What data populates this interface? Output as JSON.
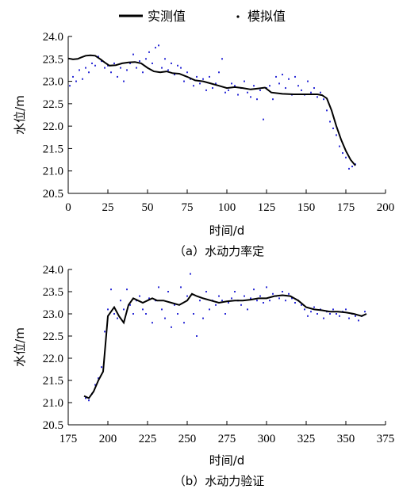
{
  "legend": {
    "measured_label": "实测值",
    "simulated_label": "模拟值"
  },
  "colors": {
    "measured_line": "#000000",
    "simulated_points": "#2b2bd6"
  },
  "chart_data": [
    {
      "type": "scatter",
      "caption": "（a）水动力率定",
      "xlabel": "时间/d",
      "ylabel": "水位/m",
      "xlim": [
        0,
        200
      ],
      "ylim": [
        20.5,
        24.0
      ],
      "xticks": [
        0,
        25,
        50,
        75,
        100,
        125,
        150,
        175,
        200
      ],
      "yticks": [
        "20.5",
        "21.0",
        "21.5",
        "22.0",
        "22.5",
        "23.0",
        "23.5",
        "24.0"
      ],
      "series": [
        {
          "name": "实测值",
          "style": "line",
          "x": [
            0,
            3,
            6,
            8,
            11,
            14,
            17,
            20,
            23,
            26,
            30,
            34,
            38,
            42,
            46,
            50,
            54,
            58,
            62,
            66,
            70,
            75,
            80,
            85,
            90,
            95,
            100,
            105,
            110,
            115,
            120,
            124,
            128,
            135,
            142,
            150,
            157,
            160,
            163,
            166,
            169,
            172,
            175,
            178,
            181
          ],
          "y": [
            23.51,
            23.49,
            23.5,
            23.53,
            23.57,
            23.58,
            23.57,
            23.5,
            23.42,
            23.35,
            23.36,
            23.4,
            23.42,
            23.43,
            23.4,
            23.3,
            23.22,
            23.2,
            23.22,
            23.18,
            23.17,
            23.1,
            23.02,
            23.0,
            22.95,
            22.9,
            22.85,
            22.87,
            22.85,
            22.82,
            22.84,
            22.86,
            22.75,
            22.72,
            22.71,
            22.71,
            22.71,
            22.69,
            22.62,
            22.35,
            22.0,
            21.7,
            21.45,
            21.25,
            21.12
          ]
        },
        {
          "name": "模拟值",
          "style": "points",
          "x": [
            1,
            3,
            5,
            7,
            9,
            11,
            13,
            15,
            17,
            19,
            21,
            23,
            25,
            27,
            29,
            31,
            33,
            35,
            37,
            39,
            41,
            43,
            45,
            47,
            49,
            51,
            53,
            55,
            57,
            59,
            61,
            63,
            65,
            67,
            69,
            71,
            73,
            75,
            77,
            79,
            81,
            83,
            85,
            87,
            89,
            91,
            93,
            95,
            97,
            99,
            101,
            103,
            105,
            107,
            109,
            111,
            113,
            115,
            117,
            119,
            121,
            123,
            125,
            127,
            129,
            131,
            133,
            135,
            137,
            139,
            141,
            143,
            145,
            147,
            149,
            151,
            153,
            155,
            157,
            159,
            161,
            163,
            165,
            167,
            169,
            171,
            173,
            175,
            177,
            179,
            181
          ],
          "y": [
            22.9,
            23.1,
            23.0,
            23.25,
            23.05,
            23.3,
            23.2,
            23.4,
            23.35,
            23.55,
            23.45,
            23.3,
            23.35,
            23.2,
            23.4,
            23.1,
            23.3,
            23.0,
            23.25,
            23.4,
            23.6,
            23.3,
            23.45,
            23.2,
            23.5,
            23.65,
            23.4,
            23.75,
            23.8,
            23.3,
            23.5,
            23.25,
            23.4,
            23.15,
            23.35,
            23.3,
            23.0,
            23.2,
            23.05,
            22.9,
            23.1,
            22.95,
            23.05,
            22.8,
            23.1,
            22.85,
            22.95,
            23.2,
            23.5,
            22.75,
            22.8,
            22.95,
            22.9,
            22.7,
            22.85,
            23.0,
            22.75,
            22.65,
            22.9,
            22.6,
            22.8,
            22.15,
            22.85,
            22.9,
            22.6,
            23.1,
            22.95,
            23.15,
            22.85,
            23.05,
            22.7,
            23.1,
            22.9,
            22.8,
            22.7,
            23.0,
            22.75,
            22.85,
            22.65,
            22.75,
            22.6,
            22.35,
            22.1,
            21.95,
            21.8,
            21.55,
            21.4,
            21.3,
            21.05,
            21.1,
            21.15
          ]
        }
      ]
    },
    {
      "type": "scatter",
      "caption": "（b）水动力验证",
      "xlabel": "时间/d",
      "ylabel": "水位/m",
      "xlim": [
        175,
        375
      ],
      "ylim": [
        20.5,
        24.0
      ],
      "xticks": [
        175,
        200,
        225,
        250,
        275,
        300,
        325,
        350,
        375
      ],
      "yticks": [
        "20.5",
        "21.0",
        "21.5",
        "22.0",
        "22.5",
        "23.0",
        "23.5",
        "24.0"
      ],
      "series": [
        {
          "name": "实测值",
          "style": "line",
          "x": [
            185,
            188,
            191,
            194,
            197,
            200,
            204,
            207,
            210,
            213,
            216,
            219,
            222,
            225,
            228,
            231,
            235,
            240,
            245,
            250,
            253,
            256,
            260,
            265,
            270,
            275,
            280,
            285,
            290,
            295,
            300,
            305,
            310,
            315,
            320,
            325,
            330,
            335,
            340,
            345,
            350,
            355,
            360,
            363
          ],
          "y": [
            21.15,
            21.1,
            21.25,
            21.5,
            21.7,
            22.95,
            23.15,
            22.95,
            22.8,
            23.2,
            23.35,
            23.3,
            23.25,
            23.3,
            23.35,
            23.3,
            23.3,
            23.25,
            23.2,
            23.3,
            23.45,
            23.4,
            23.35,
            23.3,
            23.25,
            23.28,
            23.3,
            23.3,
            23.32,
            23.35,
            23.35,
            23.4,
            23.42,
            23.4,
            23.3,
            23.15,
            23.1,
            23.08,
            23.05,
            23.05,
            23.03,
            23.0,
            22.95,
            23.0
          ]
        },
        {
          "name": "模拟值",
          "style": "points",
          "x": [
            186,
            188,
            190,
            192,
            194,
            196,
            198,
            200,
            202,
            204,
            206,
            208,
            210,
            212,
            214,
            216,
            218,
            220,
            222,
            224,
            226,
            228,
            230,
            232,
            234,
            236,
            238,
            240,
            242,
            244,
            246,
            248,
            250,
            252,
            254,
            256,
            258,
            260,
            262,
            264,
            266,
            268,
            270,
            272,
            274,
            276,
            278,
            280,
            282,
            284,
            286,
            288,
            290,
            292,
            294,
            296,
            298,
            300,
            302,
            304,
            306,
            308,
            310,
            312,
            314,
            316,
            318,
            320,
            322,
            324,
            326,
            328,
            330,
            332,
            334,
            336,
            338,
            340,
            342,
            344,
            346,
            348,
            350,
            352,
            354,
            356,
            358,
            360,
            362
          ],
          "y": [
            21.1,
            21.05,
            21.2,
            21.4,
            21.55,
            21.8,
            22.6,
            23.1,
            23.55,
            23.0,
            22.9,
            23.3,
            23.1,
            23.55,
            23.2,
            23.0,
            23.3,
            23.4,
            23.1,
            23.0,
            23.35,
            22.8,
            23.3,
            23.6,
            23.1,
            22.9,
            23.5,
            22.7,
            23.2,
            23.0,
            23.6,
            22.8,
            23.4,
            23.9,
            23.0,
            22.5,
            23.3,
            22.9,
            23.5,
            23.1,
            23.3,
            23.2,
            23.4,
            23.3,
            23.0,
            23.25,
            23.35,
            23.5,
            23.3,
            23.2,
            23.4,
            23.1,
            23.35,
            23.55,
            23.3,
            23.4,
            23.25,
            23.6,
            23.3,
            23.45,
            23.4,
            23.35,
            23.5,
            23.3,
            23.45,
            23.35,
            23.25,
            23.3,
            23.2,
            23.1,
            22.95,
            23.05,
            23.15,
            23.0,
            23.1,
            22.9,
            23.05,
            23.0,
            23.1,
            23.0,
            22.95,
            23.05,
            23.1,
            22.9,
            23.0,
            22.95,
            22.85,
            22.95,
            23.05
          ]
        }
      ]
    }
  ]
}
